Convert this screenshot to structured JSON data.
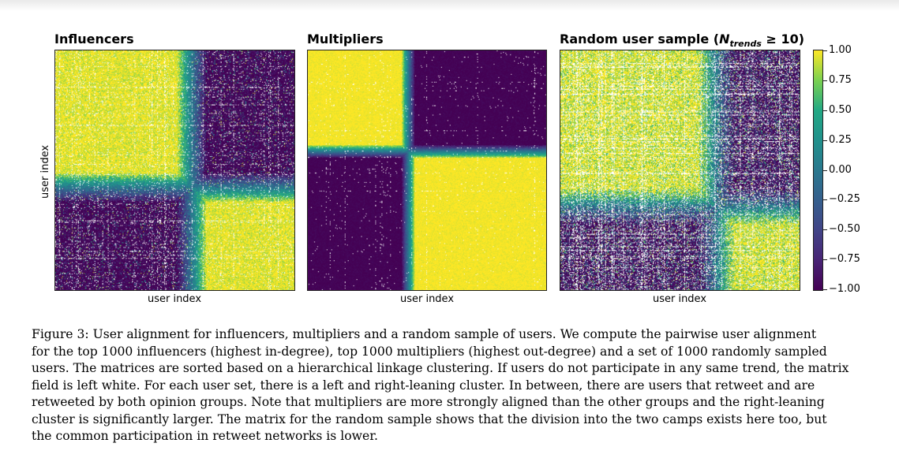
{
  "panels": [
    {
      "title": "Influencers",
      "xlabel": "user index"
    },
    {
      "title": "Multipliers",
      "xlabel": "user index"
    },
    {
      "title_prefix": "Random user sample (",
      "title_var": "N",
      "title_sub": "trends",
      "title_suffix": " ≥ 10)",
      "xlabel": "user index"
    }
  ],
  "ylabel": "user index",
  "colorbar": {
    "ticks": [
      "1.00",
      "0.75",
      "0.50",
      "0.25",
      "0.00",
      "−0.25",
      "−0.50",
      "−0.75",
      "−1.00"
    ],
    "colormap": "viridis",
    "colors": [
      "#440154",
      "#414487",
      "#2a788e",
      "#22a884",
      "#7ad151",
      "#fde725"
    ]
  },
  "chart_data": [
    {
      "type": "heatmap",
      "title": "Influencers",
      "xlabel": "user index",
      "ylabel": "user index",
      "value_range": [
        -1,
        1
      ],
      "cluster_boundary_fraction": 0.57
    },
    {
      "type": "heatmap",
      "title": "Multipliers",
      "xlabel": "user index",
      "value_range": [
        -1,
        1
      ],
      "cluster_boundary_fraction": 0.42
    },
    {
      "type": "heatmap",
      "title": "Random user sample (N_trends ≥ 10)",
      "xlabel": "user index",
      "value_range": [
        -1,
        1
      ],
      "cluster_boundary_fraction": 0.65
    }
  ],
  "caption": [
    "Figure 3: User alignment for influencers, multipliers and a random sample of users. We compute the pairwise user alignment",
    "for the top 1000 influencers (highest in-degree), top 1000 multipliers (highest out-degree) and a set of 1000 randomly sampled",
    "users. The matrices are sorted based on a hierarchical linkage clustering. If users do not participate in any same trend, the matrix",
    "field is left white. For each user set, there is a left and right-leaning cluster. In between, there are users that retweet and are",
    "retweeted by both opinion groups. Note that multipliers are more strongly aligned than the other groups and the right-leaning",
    "cluster is significantly larger. The matrix for the random sample shows that the division into the two camps exists here too, but",
    "the common participation in retweet networks is lower."
  ]
}
